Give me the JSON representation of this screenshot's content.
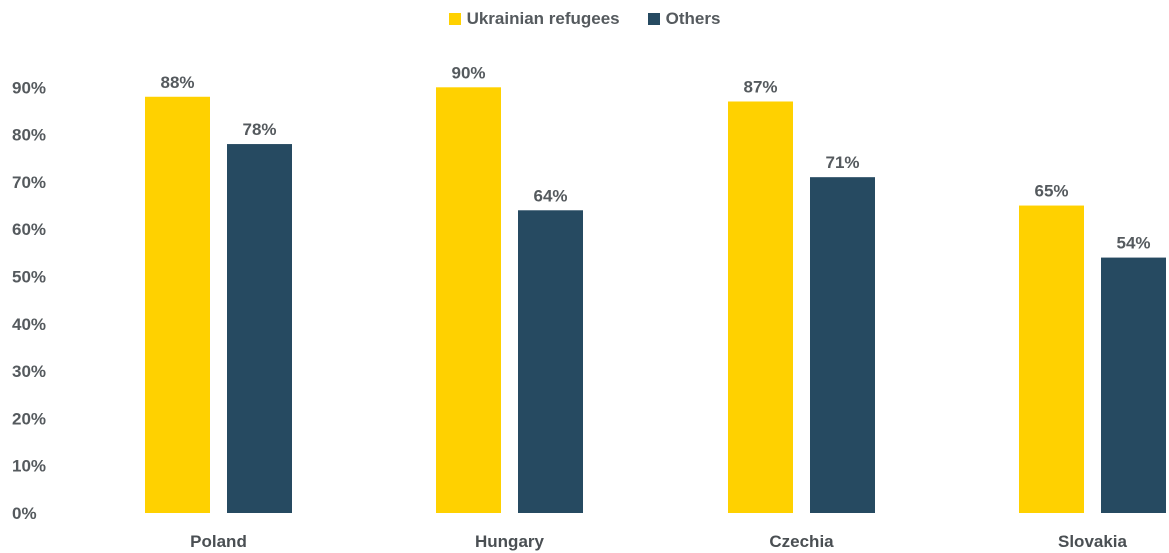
{
  "chart_data": {
    "type": "bar",
    "categories": [
      "Poland",
      "Hungary",
      "Czechia",
      "Slovakia"
    ],
    "series": [
      {
        "name": "Ukrainian refugees",
        "color": "#FFD100",
        "values": [
          88,
          90,
          87,
          65
        ],
        "labels": [
          "88%",
          "90%",
          "87%",
          "65%"
        ]
      },
      {
        "name": "Others",
        "color": "#264a61",
        "values": [
          78,
          64,
          71,
          54
        ],
        "labels": [
          "78%",
          "64%",
          "71%",
          "54%"
        ]
      }
    ],
    "yticks": [
      0,
      10,
      20,
      30,
      40,
      50,
      60,
      70,
      80,
      90
    ],
    "ytick_labels": [
      "0%",
      "10%",
      "20%",
      "30%",
      "40%",
      "50%",
      "60%",
      "70%",
      "80%",
      "90%"
    ],
    "ylim": [
      0,
      90
    ],
    "grid": false,
    "legend": "top-center"
  }
}
